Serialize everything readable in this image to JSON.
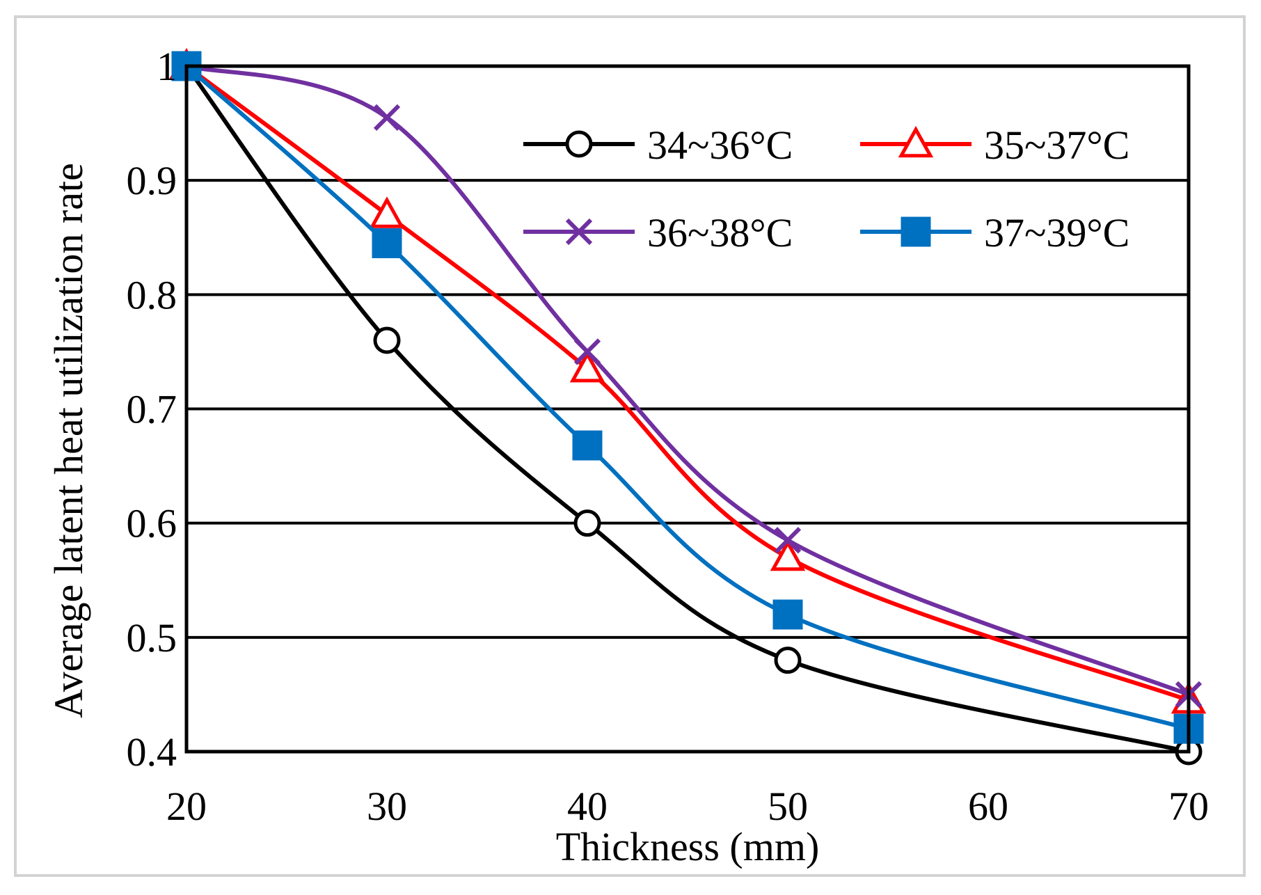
{
  "chart_data": {
    "type": "line",
    "title": "",
    "xlabel": "Thickness (mm)",
    "ylabel": "Average latent heat utilization rate",
    "xlim": [
      20,
      70
    ],
    "ylim": [
      0.4,
      1.0
    ],
    "xticks": [
      "20",
      "30",
      "40",
      "50",
      "60",
      "70"
    ],
    "yticks": [
      "0.4",
      "0.5",
      "0.6",
      "0.7",
      "0.8",
      "0.9",
      "1"
    ],
    "grid": "horizontal",
    "legend": "top-right",
    "series": [
      {
        "name": "34~36°C",
        "color": "#000000",
        "marker": "circle-open",
        "x": [
          20,
          30,
          40,
          50,
          70
        ],
        "y": [
          1.0,
          0.76,
          0.6,
          0.48,
          0.4
        ]
      },
      {
        "name": "35~37°C",
        "color": "#ff0000",
        "marker": "triangle-open",
        "x": [
          20,
          30,
          40,
          50,
          70
        ],
        "y": [
          1.0,
          0.87,
          0.735,
          0.57,
          0.445
        ]
      },
      {
        "name": "36~38°C",
        "color": "#7030a0",
        "marker": "cross",
        "x": [
          20,
          30,
          40,
          50,
          70
        ],
        "y": [
          1.0,
          0.955,
          0.75,
          0.585,
          0.45
        ]
      },
      {
        "name": "37~39°C",
        "color": "#0070c0",
        "marker": "square-filled",
        "x": [
          20,
          30,
          40,
          50,
          70
        ],
        "y": [
          1.0,
          0.845,
          0.668,
          0.52,
          0.42
        ]
      }
    ]
  }
}
